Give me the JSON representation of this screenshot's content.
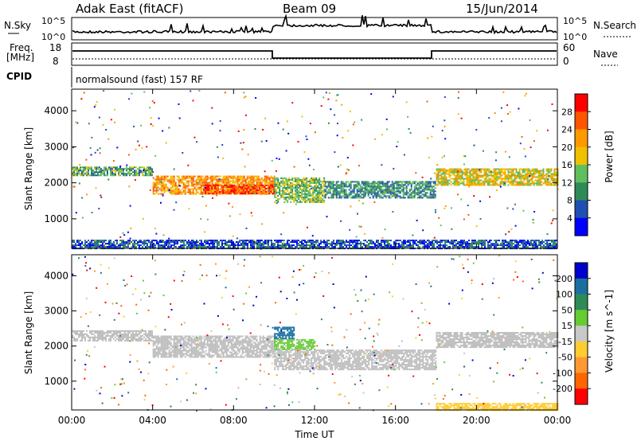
{
  "header": {
    "station": "Adak East (fitACF)",
    "beam": "Beam 09",
    "date": "15/Jun/2014"
  },
  "panels": {
    "nsky": {
      "label": "N.Sky",
      "ticks": [
        "10^5",
        "10^0"
      ],
      "right_label": "N.Search",
      "right_ticks": [
        "10^5",
        "10^0"
      ]
    },
    "freq": {
      "label": "Freq.",
      "unit": "[MHz]",
      "ticks": [
        "18",
        "8"
      ],
      "right_label": "Nave",
      "right_ticks": [
        "60",
        "0"
      ]
    },
    "cpid": {
      "label": "CPID",
      "text": "normalsound (fast) 157 RF"
    }
  },
  "colors": {
    "power": [
      "#0000ff",
      "#1f4fb0",
      "#2e8b57",
      "#5fbf5f",
      "#f0c000",
      "#ff9900",
      "#ff5500",
      "#ff0000"
    ],
    "velocity": [
      "#0000cc",
      "#1a6fa0",
      "#2e8b57",
      "#66cc33",
      "#c8c8c8",
      "#ffcc33",
      "#ff9933",
      "#ff6600",
      "#ff0000"
    ],
    "ground_scatter": "#bebebe"
  },
  "chart_data": [
    {
      "type": "heatmap",
      "title": "",
      "xlabel": "",
      "ylabel": "Slant Range [km]",
      "ylim": [
        180,
        4600
      ],
      "xlim": [
        0,
        24
      ],
      "yticks": [
        1000,
        2000,
        3000,
        4000
      ],
      "colorbar": {
        "label": "Power [dB]",
        "ticks": [
          "4",
          "8",
          "12",
          "16",
          "20",
          "24",
          "28"
        ],
        "range": [
          0,
          32
        ]
      },
      "bands": [
        {
          "t0": 0.0,
          "t1": 4.0,
          "r0": 2200,
          "r1": 2450,
          "value": 12
        },
        {
          "t0": 4.0,
          "t1": 10.0,
          "r0": 1700,
          "r1": 2200,
          "value": 22
        },
        {
          "t0": 6.5,
          "t1": 10.0,
          "r0": 1700,
          "r1": 1950,
          "value": 28
        },
        {
          "t0": 10.0,
          "t1": 12.5,
          "r0": 1450,
          "r1": 2150,
          "value": 14
        },
        {
          "t0": 12.5,
          "t1": 18.0,
          "r0": 1600,
          "r1": 2050,
          "value": 10
        },
        {
          "t0": 18.0,
          "t1": 24.0,
          "r0": 1950,
          "r1": 2400,
          "value": 18
        },
        {
          "t0": 0.0,
          "t1": 24.0,
          "r0": 180,
          "r1": 420,
          "value": 6
        }
      ]
    },
    {
      "type": "heatmap",
      "title": "",
      "xlabel": "Time UT",
      "ylabel": "Slant Range [km]",
      "ylim": [
        180,
        4600
      ],
      "xlim": [
        0,
        24
      ],
      "yticks": [
        1000,
        2000,
        3000,
        4000
      ],
      "xticks": [
        "00:00",
        "04:00",
        "08:00",
        "12:00",
        "16:00",
        "20:00",
        "00:00"
      ],
      "colorbar": {
        "label": "Velocity [m s^-1]",
        "ticks": [
          "200",
          "100",
          "50",
          "15",
          "-15",
          "-50",
          "-100",
          "-200"
        ],
        "range": [
          -250,
          250
        ]
      },
      "bands": [
        {
          "t0": 0.0,
          "t1": 4.0,
          "r0": 2150,
          "r1": 2450,
          "value": 0
        },
        {
          "t0": 4.0,
          "t1": 10.0,
          "r0": 1700,
          "r1": 2300,
          "value": 0
        },
        {
          "t0": 10.0,
          "t1": 11.0,
          "r0": 2200,
          "r1": 2550,
          "value": 180
        },
        {
          "t0": 10.0,
          "t1": 12.0,
          "r0": 1900,
          "r1": 2200,
          "value": 40
        },
        {
          "t0": 10.0,
          "t1": 18.0,
          "r0": 1350,
          "r1": 1900,
          "value": 0
        },
        {
          "t0": 18.0,
          "t1": 24.0,
          "r0": 1950,
          "r1": 2400,
          "value": 0
        },
        {
          "t0": 18.0,
          "t1": 24.0,
          "r0": 180,
          "r1": 380,
          "value": -60
        }
      ]
    }
  ]
}
